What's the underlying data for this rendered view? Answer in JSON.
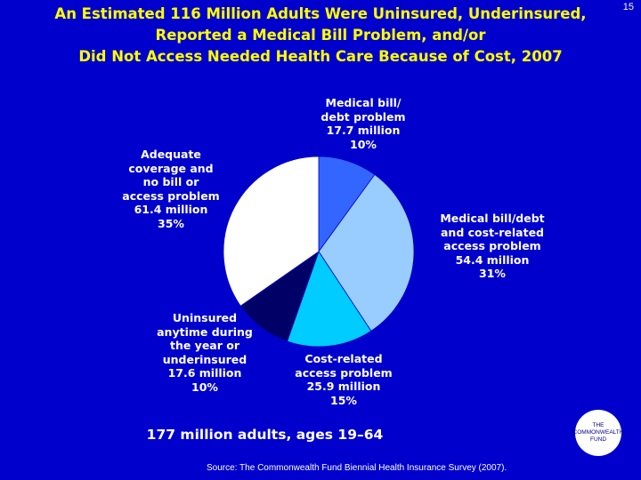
{
  "slide_number": "15",
  "title_lines": [
    "An Estimated 116 Million Adults Were Uninsured, Underinsured,",
    "Reported a Medical Bill Problem, and/or",
    "Did Not Access Needed Health Care Because of Cost, 2007"
  ],
  "chart_data": {
    "type": "pie",
    "title": "An Estimated 116 Million Adults Were Uninsured, Underinsured, Reported a Medical Bill Problem, and/or Did Not Access Needed Health Care Because of Cost, 2007",
    "total_label": "177 million adults, ages 19–64",
    "slices": [
      {
        "label_lines": [
          "Medical bill/",
          "debt problem",
          "17.7 million",
          "10%"
        ],
        "millions": 17.7,
        "percent": 10,
        "color": "#3366ff"
      },
      {
        "label_lines": [
          "Medical bill/debt",
          "and cost-related",
          "access problem",
          "54.4 million",
          "31%"
        ],
        "millions": 54.4,
        "percent": 31,
        "color": "#99ccff"
      },
      {
        "label_lines": [
          "Cost-related",
          "access problem",
          "25.9 million",
          "15%"
        ],
        "millions": 25.9,
        "percent": 15,
        "color": "#00ccff"
      },
      {
        "label_lines": [
          "Uninsured",
          "anytime during",
          "the year or",
          "underinsured",
          "17.6 million",
          "10%"
        ],
        "millions": 17.6,
        "percent": 10,
        "color": "#000066"
      },
      {
        "label_lines": [
          "Adequate",
          "coverage and",
          "no bill or",
          "access problem",
          "61.4 million",
          "35%"
        ],
        "millions": 61.4,
        "percent": 35,
        "color": "#ffffff"
      }
    ]
  },
  "source": "Source: The Commonwealth Fund Biennial Health Insurance Survey (2007).",
  "logo_lines": [
    "THE",
    "COMMONWEALTH",
    "FUND"
  ],
  "colors": {
    "background": "#0000cc",
    "title": "#ffff00",
    "text": "#ffffff"
  }
}
